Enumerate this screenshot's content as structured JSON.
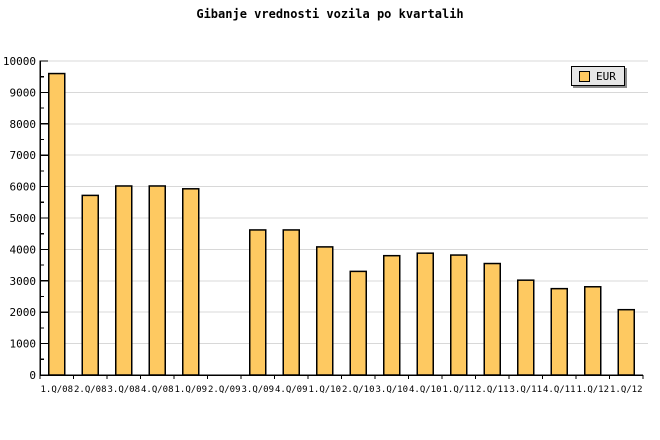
{
  "title": "Gibanje vrednosti vozila po kvartalih",
  "legend": {
    "label": "EUR"
  },
  "colors": {
    "bar_fill": "#FEC961",
    "bar_border": "#000000",
    "grid": "#D8D8D8",
    "axis": "#000000",
    "legend_bg": "#E6E6E6",
    "background": "#FFFFFF"
  },
  "chart_data": {
    "type": "bar",
    "title": "Gibanje vrednosti vozila po kvartalih",
    "series_name": "EUR",
    "categories": [
      "1.Q/08",
      "2.Q/08",
      "3.Q/08",
      "4.Q/08",
      "1.Q/09",
      "2.Q/09",
      "3.Q/09",
      "4.Q/09",
      "1.Q/10",
      "2.Q/10",
      "3.Q/10",
      "4.Q/10",
      "1.Q/11",
      "2.Q/11",
      "3.Q/11",
      "4.Q/11",
      "1.Q/12",
      "1.Q/12"
    ],
    "values": [
      9600,
      5720,
      6020,
      6020,
      5930,
      null,
      4620,
      4620,
      4080,
      3300,
      3800,
      3880,
      3820,
      3550,
      3020,
      2750,
      2810,
      2080
    ],
    "xlabel": "",
    "ylabel": "",
    "ylim": [
      0,
      10000
    ],
    "y_tick_step": 1000,
    "y_minor_tick_step": 500,
    "y_tick_labels": [
      "0",
      "1000",
      "2000",
      "3000",
      "4000",
      "5000",
      "6000",
      "7000",
      "8000",
      "9000",
      "10000"
    ],
    "grid": "horizontal",
    "legend_position": "top-right",
    "note": "no bar drawn for category 2.Q/09 (missing value); last category label 1.Q/12 appears twice"
  }
}
